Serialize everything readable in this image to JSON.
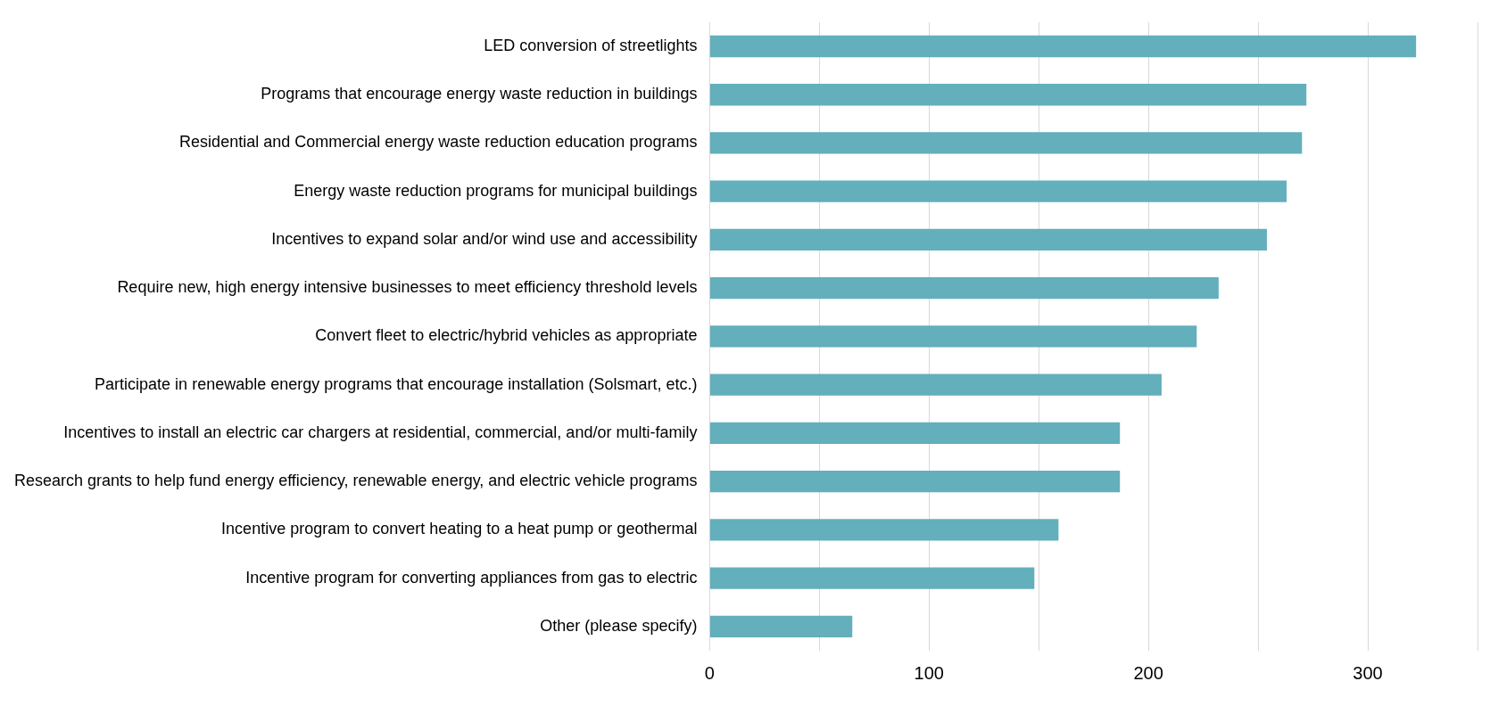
{
  "chart_data": {
    "type": "bar",
    "orientation": "horizontal",
    "categories": [
      "LED conversion of streetlights",
      "Programs that encourage energy waste reduction in buildings",
      "Residential and Commercial energy waste reduction education programs",
      "Energy waste reduction programs for municipal buildings",
      "Incentives to expand solar and/or wind use and accessibility",
      "Require new, high energy intensive businesses to meet efficiency threshold levels",
      "Convert fleet to electric/hybrid vehicles as appropriate",
      "Participate in renewable energy programs that encourage installation (Solsmart, etc.)",
      "Incentives to install an electric car chargers at residential, commercial, and/or multi-family",
      "Research grants to help fund energy efficiency, renewable energy, and electric vehicle programs",
      "Incentive program to convert heating to a heat pump or geothermal",
      "Incentive program for converting appliances from gas to electric",
      "Other (please specify)"
    ],
    "values": [
      322,
      272,
      270,
      263,
      254,
      232,
      222,
      206,
      187,
      187,
      159,
      148,
      65
    ],
    "color": "#63afbc",
    "xlim": [
      0,
      350
    ],
    "xticks": [
      0,
      {
        "value": 50,
        "label": null
      },
      100,
      {
        "value": 150,
        "label": null
      },
      200,
      {
        "value": 250,
        "label": null
      },
      300,
      {
        "value": 350,
        "label": null
      }
    ],
    "grid": "x"
  }
}
